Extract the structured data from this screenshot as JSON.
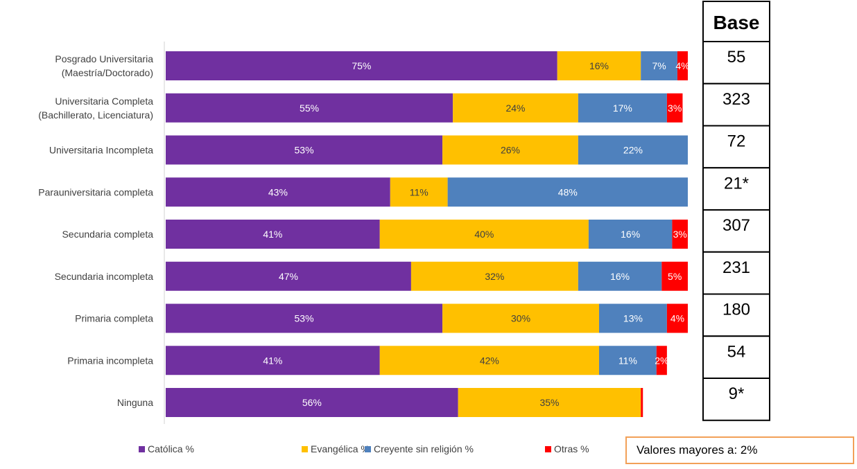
{
  "chart_data": {
    "type": "bar",
    "orientation": "horizontal",
    "stacked": true,
    "categories": [
      [
        "Posgrado Universitaria",
        "(Maestría/Doctorado)"
      ],
      [
        "Universitaria Completa",
        "(Bachillerato, Licenciatura)"
      ],
      [
        "Universitaria Incompleta"
      ],
      [
        "Parauniversitaria completa"
      ],
      [
        "Secundaria completa"
      ],
      [
        "Secundaria incompleta"
      ],
      [
        "Primaria completa"
      ],
      [
        "Primaria incompleta"
      ],
      [
        "Ninguna"
      ]
    ],
    "series": [
      {
        "name": "Católica %",
        "color": "#7030A0",
        "label_color": "#ffffff",
        "values": [
          75,
          55,
          53,
          43,
          41,
          47,
          53,
          41,
          56
        ],
        "labels": [
          "75%",
          "55%",
          "53%",
          "43%",
          "41%",
          "47%",
          "53%",
          "41%",
          "56%"
        ]
      },
      {
        "name": "Evangélica %",
        "color": "#FFC000",
        "label_color": "#404040",
        "values": [
          16,
          24,
          26,
          11,
          40,
          32,
          30,
          42,
          35
        ],
        "labels": [
          "16%",
          "24%",
          "26%",
          "11%",
          "40%",
          "32%",
          "30%",
          "42%",
          "35%"
        ]
      },
      {
        "name": "Creyente sin religión %",
        "color": "#4F81BD",
        "label_color": "#ffffff",
        "values": [
          7,
          17,
          22,
          48,
          16,
          16,
          13,
          11,
          0
        ],
        "labels": [
          "7%",
          "17%",
          "22%",
          "48%",
          "16%",
          "16%",
          "13%",
          "11%",
          ""
        ]
      },
      {
        "name": "Otras %",
        "color": "#FF0000",
        "label_color": "#ffffff",
        "values": [
          4,
          3,
          0.4,
          0.4,
          3,
          5,
          4,
          2,
          0.4
        ],
        "labels": [
          "4%",
          "3%",
          "",
          "",
          "3%",
          "5%",
          "4%",
          "2%",
          ""
        ]
      }
    ],
    "xlim": [
      0,
      100
    ],
    "grid": false,
    "legend_position": "bottom",
    "base": {
      "header": "Base",
      "values": [
        "55",
        "323",
        "72",
        "21*",
        "307",
        "231",
        "180",
        "54",
        "9*"
      ]
    }
  },
  "note": "Valores mayores a: 2%"
}
